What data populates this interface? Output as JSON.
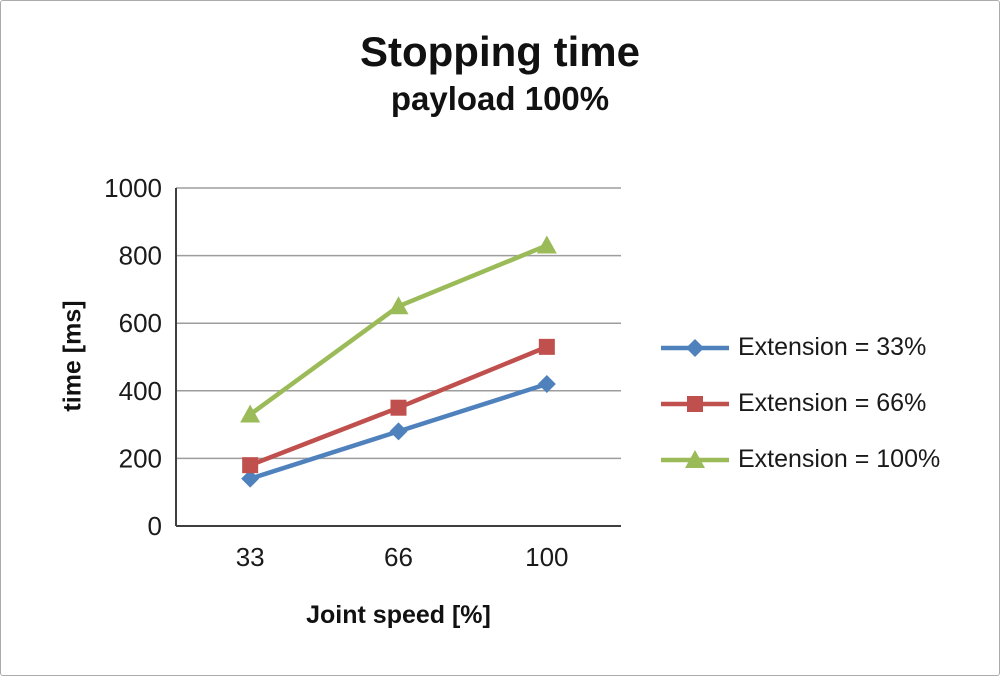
{
  "chart_data": {
    "type": "line",
    "title": "Stopping time",
    "subtitle": "payload 100%",
    "xlabel": "Joint speed [%]",
    "ylabel": "time [ms]",
    "categories": [
      "33",
      "66",
      "100"
    ],
    "yticks": [
      0,
      200,
      400,
      600,
      800,
      1000
    ],
    "ylim": [
      0,
      1000
    ],
    "grid": "horizontal",
    "legend_position": "right",
    "series": [
      {
        "name": "Extension = 33%",
        "marker": "diamond",
        "color": "#4F81BD",
        "values": [
          140,
          280,
          420
        ]
      },
      {
        "name": "Extension = 66%",
        "marker": "square",
        "color": "#C0504D",
        "values": [
          180,
          350,
          530
        ]
      },
      {
        "name": "Extension = 100%",
        "marker": "triangle",
        "color": "#9BBB59",
        "values": [
          330,
          650,
          830
        ]
      }
    ]
  },
  "style": {
    "grid_color": "#9d9d9d",
    "axis_color": "#3f3f3f"
  }
}
